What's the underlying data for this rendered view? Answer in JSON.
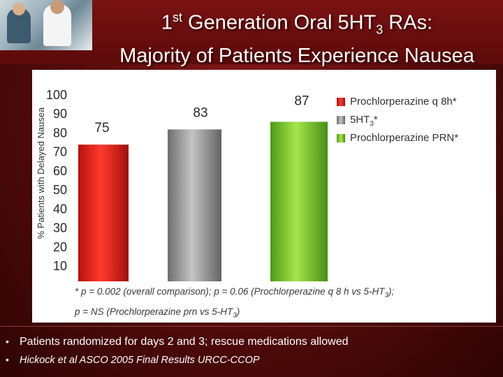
{
  "slide": {
    "title_line1_pre": "1",
    "title_line1_sup": "st",
    "title_line1_mid": " Generation Oral 5HT",
    "title_line1_sub": "3",
    "title_line1_post": " RAs:",
    "title_line2": "Majority of Patients Experience Nausea"
  },
  "chart_data": {
    "type": "bar",
    "title": "",
    "xlabel": "",
    "ylabel": "% Patients with Delayed Nausea",
    "ylim": [
      10,
      100
    ],
    "yticks": [
      "100",
      "90",
      "80",
      "70",
      "60",
      "50",
      "40",
      "30",
      "20",
      "10"
    ],
    "categories": [
      "Prochlorperazine q 8h*",
      "5HT3*",
      "Prochlorperazine PRN*"
    ],
    "values": [
      75,
      83,
      87
    ],
    "value_labels": [
      "75",
      "83",
      "87"
    ],
    "colors": [
      "#e8231c",
      "#9e9e9e",
      "#7dc23a"
    ],
    "legend": [
      {
        "name": "Prochlorperazine q 8h*",
        "color": "#e8231c"
      },
      {
        "name_pre": "5HT",
        "name_sub": "3",
        "name_post": "*",
        "color": "#9e9e9e"
      },
      {
        "name": "Prochlorperazine PRN*",
        "color": "#7dc23a"
      }
    ],
    "legend_position": "top-right"
  },
  "footnote": {
    "line1_pre": "* p = 0.002 (overall comparison); p = 0.06 (Prochlorperazine q 8 h vs 5-HT",
    "line1_sub": "3",
    "line1_post": ");",
    "line2_pre": "p = NS (Prochlorperazine prn vs 5-HT",
    "line2_sub": "3",
    "line2_post": ")"
  },
  "bullets": [
    {
      "dot": "•",
      "text": "Patients randomized for days 2 and 3; rescue medications allowed"
    },
    {
      "dot": "•",
      "text": "Hickock et al ASCO 2005 Final Results  URCC-CCOP"
    }
  ]
}
